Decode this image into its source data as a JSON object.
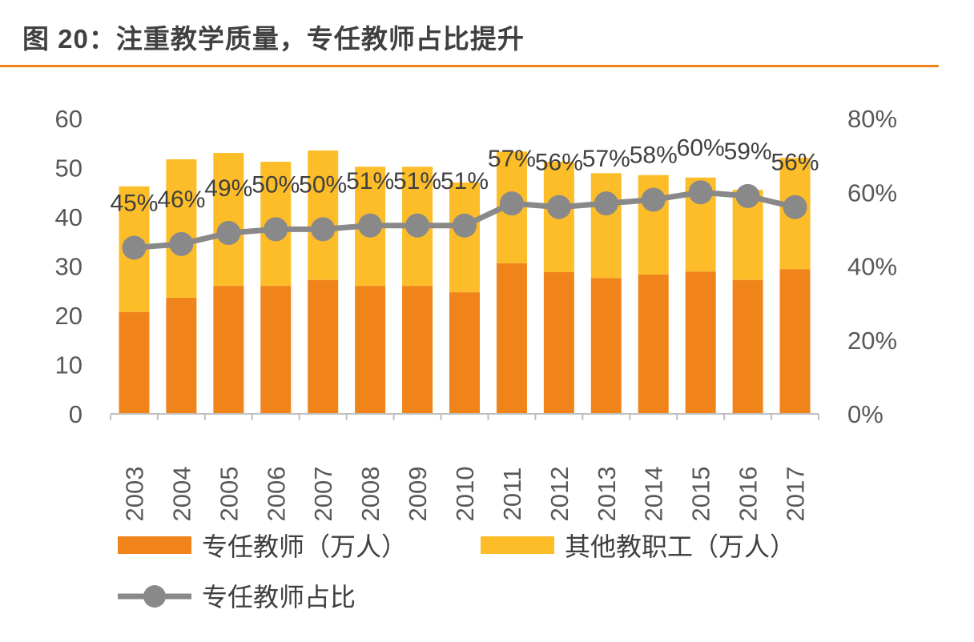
{
  "title": "图 20：注重教学质量，专任教师占比提升",
  "colors": {
    "teachers": "#F0841A",
    "other": "#FDBD28",
    "ratio": "#898989",
    "rule": "#F0841A"
  },
  "chart_data": {
    "type": "bar",
    "stacked": true,
    "title": "图 20：注重教学质量，专任教师占比提升",
    "categories": [
      "2003",
      "2004",
      "2005",
      "2006",
      "2007",
      "2008",
      "2009",
      "2010",
      "2011",
      "2012",
      "2013",
      "2014",
      "2015",
      "2016",
      "2017"
    ],
    "series": [
      {
        "name": "专任教师（万人）",
        "type": "bar",
        "axis": "left",
        "values": [
          20.7,
          23.6,
          26.0,
          26.0,
          27.2,
          26.0,
          26.0,
          24.7,
          30.6,
          28.8,
          27.6,
          28.3,
          28.9,
          27.2,
          29.4
        ]
      },
      {
        "name": "其他教职工（万人）",
        "type": "bar",
        "axis": "left",
        "values": [
          25.5,
          28.1,
          27.0,
          25.2,
          26.3,
          24.2,
          24.2,
          22.3,
          22.7,
          22.4,
          21.3,
          20.2,
          19.1,
          18.3,
          22.6
        ]
      },
      {
        "name": "专任教师占比",
        "type": "line",
        "axis": "right",
        "values": [
          45,
          46,
          49,
          50,
          50,
          51,
          51,
          51,
          57,
          56,
          57,
          58,
          60,
          59,
          56
        ],
        "labels": [
          "45%",
          "46%",
          "49%",
          "50%",
          "50%",
          "51%",
          "51%",
          "51%",
          "57%",
          "56%",
          "57%",
          "58%",
          "60%",
          "59%",
          "56%"
        ]
      }
    ],
    "ylim": [
      0,
      60
    ],
    "yticks": [
      "0",
      "10",
      "20",
      "30",
      "40",
      "50",
      "60"
    ],
    "y2lim": [
      0,
      80
    ],
    "y2ticks": [
      "0%",
      "20%",
      "40%",
      "60%",
      "80%"
    ],
    "grid": false,
    "legend": "bottom"
  }
}
